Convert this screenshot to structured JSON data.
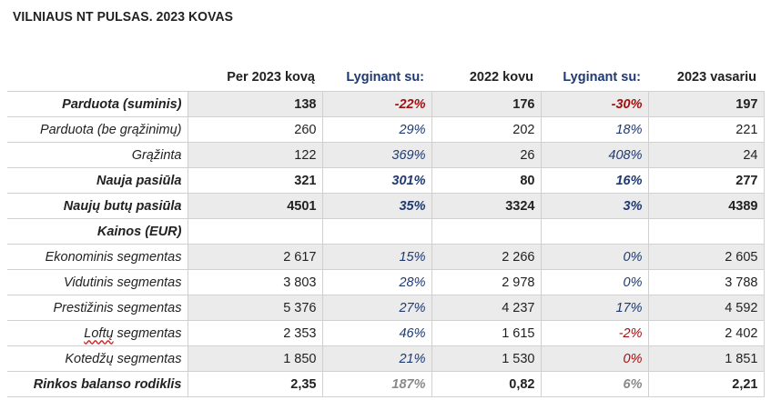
{
  "title": "VILNIAUS NT PULSAS. 2023 KOVAS",
  "headers": [
    "",
    "Per 2023 kovą",
    "Lyginant su:",
    "2022 kovu",
    "Lyginant su:",
    "2023 vasariu"
  ],
  "rows": [
    {
      "label": "Parduota (suminis)",
      "v1": "138",
      "p1": "-22%",
      "v2": "176",
      "p2": "-30%",
      "v3": "197"
    },
    {
      "label": "Parduota (be grąžinimų)",
      "v1": "260",
      "p1": "29%",
      "v2": "202",
      "p2": "18%",
      "v3": "221"
    },
    {
      "label": "Grąžinta",
      "v1": "122",
      "p1": "369%",
      "v2": "26",
      "p2": "408%",
      "v3": "24"
    },
    {
      "label": "Nauja pasiūla",
      "v1": "321",
      "p1": "301%",
      "v2": "80",
      "p2": "16%",
      "v3": "277"
    },
    {
      "label": "Naujų butų pasiūla",
      "v1": "4501",
      "p1": "35%",
      "v2": "3324",
      "p2": "3%",
      "v3": "4389"
    },
    {
      "label": "Kainos (EUR)",
      "v1": "",
      "p1": "",
      "v2": "",
      "p2": "",
      "v3": ""
    },
    {
      "label": "Ekonominis segmentas",
      "v1": "2 617",
      "p1": "15%",
      "v2": "2 266",
      "p2": "0%",
      "v3": "2 605"
    },
    {
      "label": "Vidutinis segmentas",
      "v1": "3 803",
      "p1": "28%",
      "v2": "2 978",
      "p2": "0%",
      "v3": "3 788"
    },
    {
      "label": "Prestižinis segmentas",
      "v1": "5 376",
      "p1": "27%",
      "v2": "4 237",
      "p2": "17%",
      "v3": "4 592"
    },
    {
      "label_word": "Loftų",
      "label_rest": " segmentas",
      "v1": "2 353",
      "p1": "46%",
      "v2": "1 615",
      "p2": "-2%",
      "v3": "2 402"
    },
    {
      "label": "Kotedžų segmentas",
      "v1": "1 850",
      "p1": "21%",
      "v2": "1 530",
      "p2": "0%",
      "v3": "1 851"
    },
    {
      "label": "Rinkos balanso rodiklis",
      "v1": "2,35",
      "p1": "187%",
      "v2": "0,82",
      "p2": "6%",
      "v3": "2,21"
    }
  ]
}
